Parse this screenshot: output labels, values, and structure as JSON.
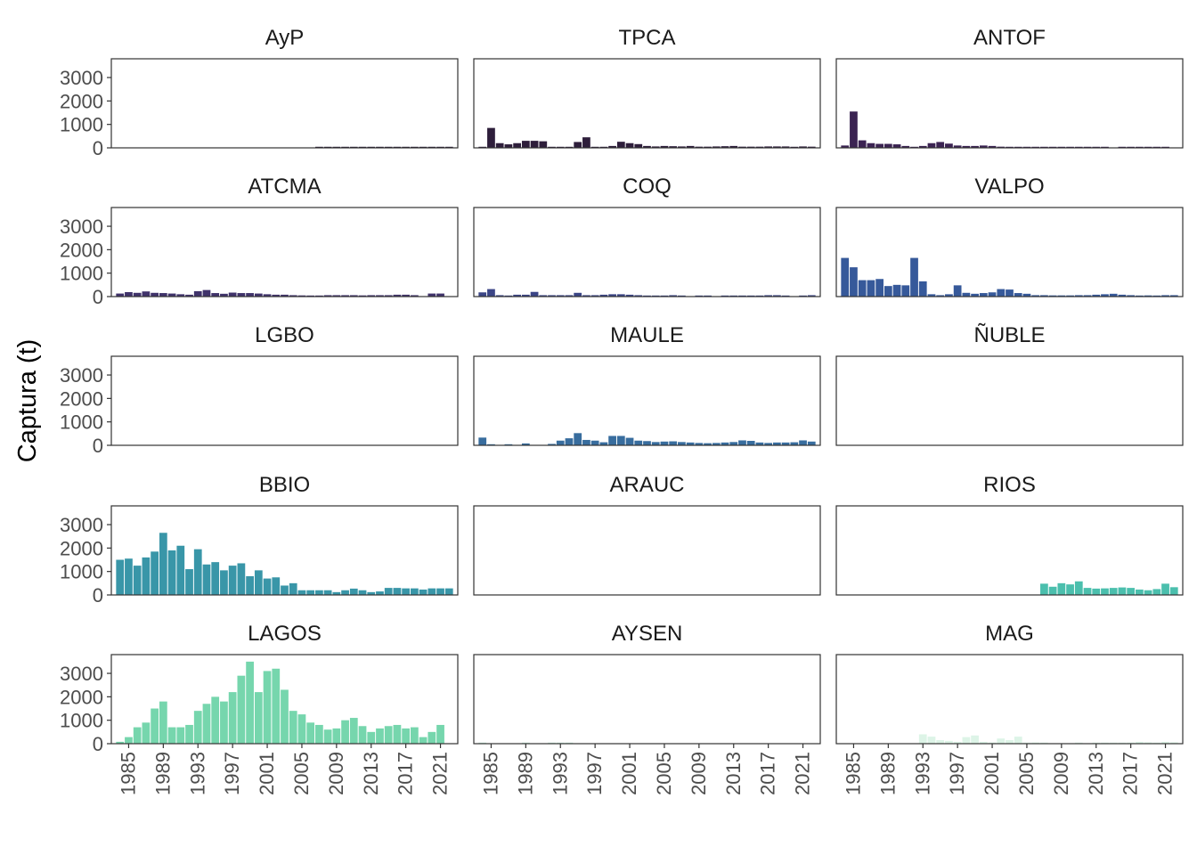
{
  "chart_data": {
    "type": "bar",
    "ylabel": "Captura (t)",
    "xlabel": "",
    "title": "",
    "ylim": [
      0,
      3800
    ],
    "y_ticks": [
      0,
      1000,
      2000,
      3000
    ],
    "y_tick_labels": [
      "0",
      "1000",
      "2000",
      "3000"
    ],
    "x_ticks": [
      1985,
      1989,
      1993,
      1997,
      2001,
      2005,
      2009,
      2013,
      2017,
      2021
    ],
    "x_tick_labels": [
      "1985",
      "1989",
      "1993",
      "1997",
      "2001",
      "2005",
      "2009",
      "2013",
      "2017",
      "2021"
    ],
    "x_range": [
      1983,
      2023
    ],
    "years": [
      1984,
      1985,
      1986,
      1987,
      1988,
      1989,
      1990,
      1991,
      1992,
      1993,
      1994,
      1995,
      1996,
      1997,
      1998,
      1999,
      2000,
      2001,
      2002,
      2003,
      2004,
      2005,
      2006,
      2007,
      2008,
      2009,
      2010,
      2011,
      2012,
      2013,
      2014,
      2015,
      2016,
      2017,
      2018,
      2019,
      2020,
      2021,
      2022
    ],
    "grid": false,
    "legend": "none",
    "panels": [
      {
        "name": "AyP",
        "color": "#2a1d37",
        "values": [
          null,
          null,
          null,
          null,
          null,
          null,
          null,
          null,
          null,
          null,
          null,
          null,
          null,
          null,
          null,
          null,
          null,
          null,
          null,
          null,
          null,
          null,
          null,
          15,
          15,
          15,
          15,
          15,
          15,
          15,
          15,
          15,
          15,
          15,
          15,
          15,
          15,
          15,
          15
        ]
      },
      {
        "name": "TPCA",
        "color": "#2e1e3b",
        "values": [
          30,
          850,
          200,
          150,
          200,
          300,
          300,
          280,
          30,
          20,
          20,
          250,
          450,
          30,
          20,
          80,
          260,
          200,
          160,
          80,
          60,
          80,
          70,
          60,
          80,
          50,
          50,
          60,
          70,
          80,
          50,
          50,
          50,
          60,
          60,
          60,
          40,
          60,
          50
        ]
      },
      {
        "name": "ANTOF",
        "color": "#3b2352",
        "values": [
          100,
          1550,
          320,
          200,
          170,
          170,
          150,
          80,
          30,
          80,
          200,
          250,
          180,
          100,
          80,
          80,
          100,
          80,
          50,
          30,
          20,
          20,
          20,
          20,
          20,
          20,
          20,
          20,
          20,
          20,
          20,
          null,
          20,
          20,
          20,
          20,
          20,
          20,
          null
        ]
      },
      {
        "name": "ATCMA",
        "color": "#40336b",
        "values": [
          130,
          190,
          160,
          220,
          160,
          150,
          130,
          100,
          80,
          230,
          280,
          150,
          120,
          170,
          150,
          150,
          130,
          100,
          80,
          80,
          60,
          50,
          40,
          40,
          60,
          60,
          60,
          60,
          50,
          60,
          60,
          60,
          80,
          80,
          60,
          null,
          130,
          130,
          null
        ]
      },
      {
        "name": "COQ",
        "color": "#3b4586",
        "values": [
          180,
          320,
          60,
          30,
          80,
          80,
          200,
          60,
          60,
          60,
          60,
          160,
          60,
          60,
          80,
          100,
          100,
          80,
          60,
          40,
          40,
          40,
          60,
          30,
          null,
          30,
          30,
          null,
          30,
          30,
          30,
          30,
          40,
          60,
          60,
          30,
          null,
          40,
          60
        ]
      },
      {
        "name": "VALPO",
        "color": "#36599a",
        "values": [
          1650,
          1250,
          700,
          700,
          750,
          450,
          500,
          480,
          1650,
          650,
          100,
          60,
          100,
          480,
          160,
          120,
          150,
          180,
          320,
          300,
          150,
          120,
          60,
          60,
          50,
          50,
          50,
          60,
          60,
          80,
          100,
          120,
          80,
          60,
          40,
          50,
          40,
          60,
          60
        ]
      },
      {
        "name": "LGBO",
        "color": "#366e9c",
        "values": []
      },
      {
        "name": "MAULE",
        "color": "#386d9e",
        "values": [
          330,
          30,
          null,
          30,
          null,
          80,
          null,
          null,
          60,
          200,
          300,
          520,
          230,
          200,
          130,
          400,
          400,
          320,
          200,
          180,
          140,
          160,
          170,
          140,
          120,
          100,
          90,
          100,
          120,
          140,
          210,
          190,
          120,
          100,
          120,
          120,
          130,
          210,
          160
        ]
      },
      {
        "name": "ÑUBLE",
        "color": "#38879f",
        "values": []
      },
      {
        "name": "BBIO",
        "color": "#3996a8",
        "values": [
          1500,
          1550,
          1250,
          1600,
          1850,
          2650,
          1900,
          2100,
          1100,
          1950,
          1300,
          1400,
          1050,
          1250,
          1350,
          800,
          1050,
          700,
          750,
          400,
          500,
          200,
          200,
          200,
          200,
          120,
          200,
          270,
          200,
          120,
          150,
          300,
          300,
          280,
          280,
          230,
          280,
          280,
          280
        ]
      },
      {
        "name": "ARAUC",
        "color": "#3aa5aa",
        "values": []
      },
      {
        "name": "RIOS",
        "color": "#4bbfad",
        "values": [
          null,
          null,
          null,
          null,
          null,
          null,
          null,
          null,
          null,
          null,
          null,
          null,
          null,
          null,
          null,
          null,
          null,
          null,
          null,
          null,
          null,
          null,
          null,
          480,
          350,
          500,
          450,
          580,
          300,
          270,
          280,
          300,
          320,
          300,
          230,
          200,
          250,
          480,
          330
        ]
      },
      {
        "name": "LAGOS",
        "color": "#76d6ad",
        "values": [
          80,
          280,
          700,
          900,
          1500,
          1800,
          700,
          700,
          800,
          1400,
          1700,
          2000,
          1800,
          2200,
          2900,
          3500,
          2200,
          3100,
          3200,
          2300,
          1400,
          1250,
          900,
          800,
          600,
          650,
          1000,
          1100,
          750,
          500,
          650,
          750,
          800,
          650,
          700,
          280,
          500,
          800,
          null
        ]
      },
      {
        "name": "AYSEN",
        "color": "#c5ebd9",
        "values": [
          30,
          null,
          null,
          null,
          null,
          30,
          null,
          null,
          30,
          30,
          30,
          null,
          null,
          null,
          null,
          null,
          null,
          null,
          null,
          null,
          null,
          null,
          null,
          null,
          null,
          null,
          null,
          null,
          null,
          null,
          null,
          null,
          null,
          null,
          null,
          null,
          null,
          null,
          null
        ]
      },
      {
        "name": "MAG",
        "color": "#ddf4e7",
        "values": [
          null,
          null,
          null,
          null,
          null,
          null,
          null,
          null,
          null,
          400,
          300,
          150,
          120,
          80,
          280,
          350,
          80,
          50,
          220,
          150,
          300,
          40,
          50,
          30,
          null,
          null,
          null,
          30,
          null,
          40,
          40,
          40,
          30,
          50,
          80,
          60,
          40,
          80,
          60
        ]
      }
    ]
  }
}
